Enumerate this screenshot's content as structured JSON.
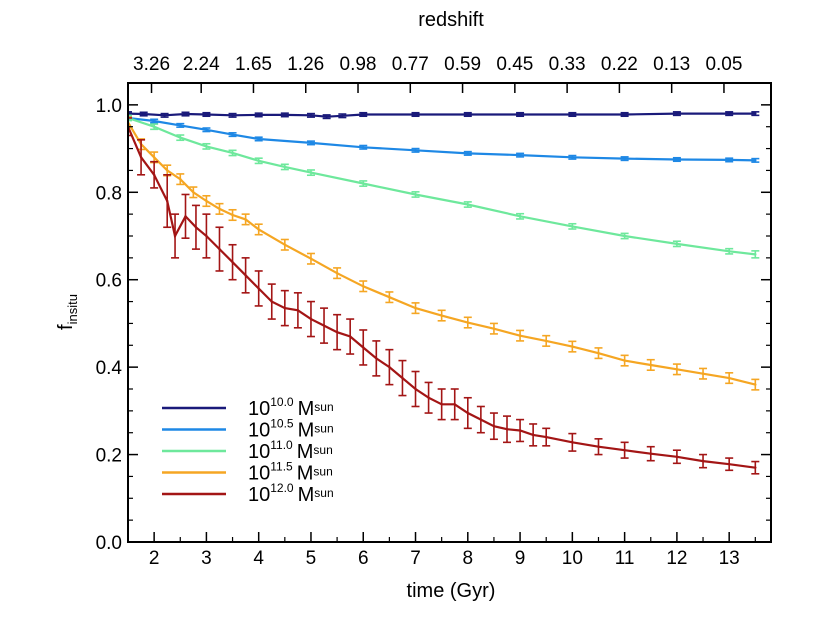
{
  "chart_data": {
    "type": "line",
    "xlabel": "time (Gyr)",
    "ylabel": "f",
    "ylabel_sub": "insitu",
    "top_axis_label": "redshift",
    "xlim": [
      1.5,
      13.8
    ],
    "ylim": [
      0.0,
      1.05
    ],
    "x_ticks": [
      2,
      3,
      4,
      5,
      6,
      7,
      8,
      9,
      10,
      11,
      12,
      13
    ],
    "y_ticks": [
      0.0,
      0.2,
      0.4,
      0.6,
      0.8,
      1.0
    ],
    "y_tick_labels": [
      "0.0",
      "0.2",
      "0.4",
      "0.6",
      "0.8",
      "1.0"
    ],
    "top_ticks": [
      {
        "label": "3.26",
        "x": 1.95
      },
      {
        "label": "2.24",
        "x": 2.9
      },
      {
        "label": "1.65",
        "x": 3.9
      },
      {
        "label": "1.26",
        "x": 4.9
      },
      {
        "label": "0.98",
        "x": 5.9
      },
      {
        "label": "0.77",
        "x": 6.9
      },
      {
        "label": "0.59",
        "x": 7.9
      },
      {
        "label": "0.45",
        "x": 8.9
      },
      {
        "label": "0.33",
        "x": 9.9
      },
      {
        "label": "0.22",
        "x": 10.9
      },
      {
        "label": "0.13",
        "x": 11.9
      },
      {
        "label": "0.05",
        "x": 12.9
      }
    ],
    "legend_placement": "lower-left",
    "grid": false,
    "series": [
      {
        "name_base": "10",
        "name_exp": "10.0",
        "name_unit": "M",
        "name_unit_sub": "sun",
        "color": "#1a1a7a",
        "x": [
          1.5,
          1.8,
          2.2,
          2.6,
          3.0,
          3.5,
          4.0,
          4.5,
          5.0,
          5.3,
          5.6,
          6.0,
          7.0,
          8.0,
          9.0,
          10.0,
          11.0,
          12.0,
          13.0,
          13.5
        ],
        "y": [
          0.98,
          0.979,
          0.976,
          0.979,
          0.978,
          0.976,
          0.977,
          0.977,
          0.976,
          0.973,
          0.975,
          0.978,
          0.978,
          0.978,
          0.978,
          0.978,
          0.978,
          0.98,
          0.98,
          0.98
        ],
        "err": [
          0.004,
          0.004,
          0.004,
          0.004,
          0.004,
          0.004,
          0.004,
          0.004,
          0.004,
          0.004,
          0.004,
          0.004,
          0.004,
          0.004,
          0.004,
          0.004,
          0.004,
          0.004,
          0.004,
          0.004
        ]
      },
      {
        "name_base": "10",
        "name_exp": "10.5",
        "name_unit": "M",
        "name_unit_sub": "sun",
        "color": "#1e88e5",
        "x": [
          1.5,
          2.0,
          2.5,
          3.0,
          3.5,
          4.0,
          5.0,
          6.0,
          7.0,
          8.0,
          9.0,
          10.0,
          11.0,
          12.0,
          13.0,
          13.5
        ],
        "y": [
          0.97,
          0.963,
          0.953,
          0.943,
          0.932,
          0.922,
          0.913,
          0.903,
          0.896,
          0.889,
          0.885,
          0.88,
          0.877,
          0.875,
          0.874,
          0.873
        ],
        "err": [
          0.004,
          0.004,
          0.004,
          0.004,
          0.004,
          0.004,
          0.004,
          0.004,
          0.004,
          0.004,
          0.004,
          0.004,
          0.004,
          0.004,
          0.004,
          0.004
        ]
      },
      {
        "name_base": "10",
        "name_exp": "11.0",
        "name_unit": "M",
        "name_unit_sub": "sun",
        "color": "#6ee89c",
        "x": [
          1.5,
          2.0,
          2.5,
          3.0,
          3.5,
          4.0,
          4.5,
          5.0,
          6.0,
          7.0,
          8.0,
          9.0,
          10.0,
          11.0,
          12.0,
          13.0,
          13.5
        ],
        "y": [
          0.97,
          0.95,
          0.925,
          0.905,
          0.89,
          0.872,
          0.858,
          0.845,
          0.82,
          0.795,
          0.772,
          0.745,
          0.722,
          0.7,
          0.682,
          0.665,
          0.658
        ],
        "err": [
          0.006,
          0.006,
          0.006,
          0.006,
          0.006,
          0.006,
          0.006,
          0.006,
          0.006,
          0.006,
          0.006,
          0.006,
          0.006,
          0.006,
          0.006,
          0.006,
          0.008
        ]
      },
      {
        "name_base": "10",
        "name_exp": "11.5",
        "name_unit": "M",
        "name_unit_sub": "sun",
        "color": "#f5a623",
        "x": [
          1.5,
          1.75,
          2.0,
          2.25,
          2.5,
          2.75,
          3.0,
          3.25,
          3.5,
          3.75,
          4.0,
          4.5,
          5.0,
          5.5,
          6.0,
          6.5,
          7.0,
          7.5,
          8.0,
          8.5,
          9.0,
          9.5,
          10.0,
          10.5,
          11.0,
          11.5,
          12.0,
          12.5,
          13.0,
          13.5
        ],
        "y": [
          0.96,
          0.91,
          0.88,
          0.85,
          0.83,
          0.8,
          0.78,
          0.762,
          0.748,
          0.738,
          0.715,
          0.68,
          0.648,
          0.615,
          0.585,
          0.56,
          0.535,
          0.518,
          0.502,
          0.488,
          0.472,
          0.46,
          0.447,
          0.432,
          0.415,
          0.405,
          0.395,
          0.385,
          0.375,
          0.36
        ],
        "err": [
          0.012,
          0.012,
          0.012,
          0.012,
          0.012,
          0.012,
          0.012,
          0.012,
          0.012,
          0.012,
          0.012,
          0.012,
          0.012,
          0.012,
          0.012,
          0.012,
          0.012,
          0.012,
          0.012,
          0.012,
          0.012,
          0.012,
          0.012,
          0.012,
          0.012,
          0.012,
          0.012,
          0.012,
          0.012,
          0.012
        ]
      },
      {
        "name_base": "10",
        "name_exp": "12.0",
        "name_unit": "M",
        "name_unit_sub": "sun",
        "color": "#a31515",
        "x": [
          1.5,
          1.75,
          2.0,
          2.25,
          2.4,
          2.6,
          2.8,
          3.0,
          3.25,
          3.5,
          3.75,
          4.0,
          4.25,
          4.5,
          4.75,
          5.0,
          5.25,
          5.5,
          5.75,
          6.0,
          6.25,
          6.5,
          6.75,
          7.0,
          7.25,
          7.5,
          7.75,
          8.0,
          8.25,
          8.5,
          8.75,
          9.0,
          9.25,
          9.5,
          10.0,
          10.5,
          11.0,
          11.5,
          12.0,
          12.5,
          13.0,
          13.5
        ],
        "y": [
          0.95,
          0.88,
          0.84,
          0.78,
          0.7,
          0.745,
          0.72,
          0.7,
          0.67,
          0.64,
          0.61,
          0.58,
          0.55,
          0.535,
          0.53,
          0.51,
          0.495,
          0.48,
          0.47,
          0.445,
          0.42,
          0.4,
          0.375,
          0.35,
          0.33,
          0.315,
          0.315,
          0.295,
          0.28,
          0.265,
          0.258,
          0.255,
          0.245,
          0.24,
          0.228,
          0.218,
          0.21,
          0.202,
          0.195,
          0.185,
          0.178,
          0.17
        ],
        "err": [
          0.02,
          0.04,
          0.03,
          0.06,
          0.05,
          0.05,
          0.05,
          0.05,
          0.05,
          0.04,
          0.04,
          0.04,
          0.04,
          0.04,
          0.04,
          0.04,
          0.04,
          0.04,
          0.04,
          0.04,
          0.04,
          0.04,
          0.04,
          0.04,
          0.035,
          0.035,
          0.035,
          0.035,
          0.03,
          0.03,
          0.03,
          0.025,
          0.025,
          0.02,
          0.02,
          0.018,
          0.018,
          0.016,
          0.015,
          0.015,
          0.014,
          0.014
        ]
      }
    ]
  }
}
